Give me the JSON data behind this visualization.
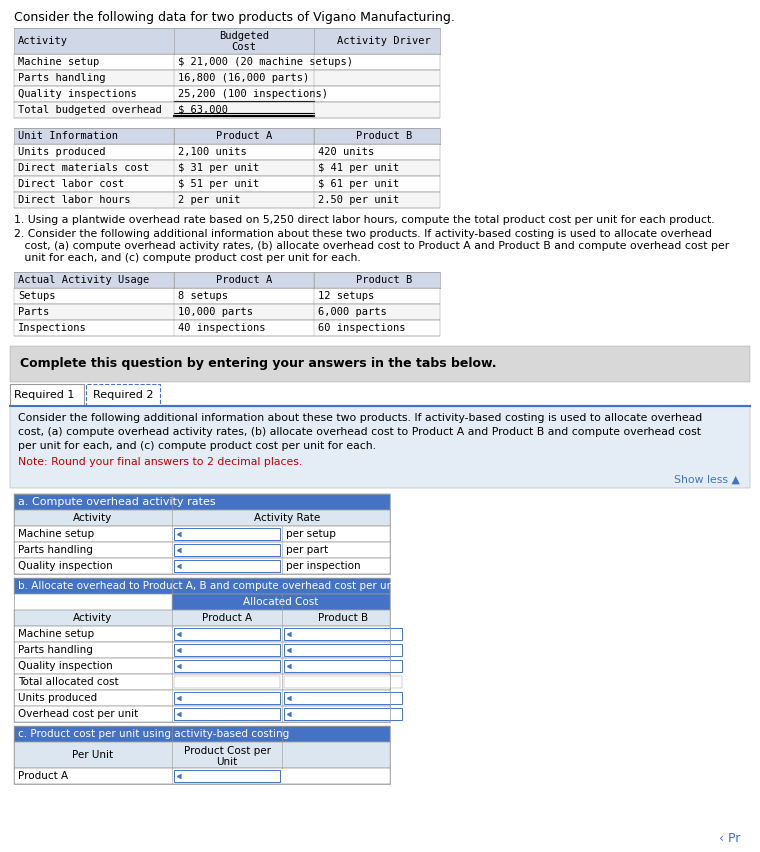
{
  "title": "Consider the following data for two products of Vigano Manufacturing.",
  "bg_color": "#ffffff",
  "header_bg": "#d0d8e8",
  "row_bg1": "#f5f5f5",
  "row_bg2": "#ffffff",
  "total_bg": "#e8e8e8",
  "blue_dark": "#4472c4",
  "blue_light": "#dce6f1",
  "blue_mid": "#b8cce4",
  "gray_box": "#d8d8d8",
  "note_red": "#c00000",
  "link_blue": "#4472c4",
  "content_bg": "#e4edf5",
  "white": "#ffffff",
  "black": "#000000",
  "border": "#999999",
  "t1_rows": [
    [
      "Machine setup",
      "$ 21,000 (20 machine setups)"
    ],
    [
      "Parts handling",
      "16,800 (16,000 parts)"
    ],
    [
      "Quality inspections",
      "25,200 (100 inspections)"
    ],
    [
      "Total budgeted overhead",
      "$ 63,000"
    ]
  ],
  "t2_rows": [
    [
      "Units produced",
      "2,100 units",
      "420 units"
    ],
    [
      "Direct materials cost",
      "$ 31 per unit",
      "$ 41 per unit"
    ],
    [
      "Direct labor cost",
      "$ 51 per unit",
      "$ 61 per unit"
    ],
    [
      "Direct labor hours",
      "2 per unit",
      "2.50 per unit"
    ]
  ],
  "t3_rows": [
    [
      "Setups",
      "8 setups",
      "12 setups"
    ],
    [
      "Parts",
      "10,000 parts",
      "6,000 parts"
    ],
    [
      "Inspections",
      "40 inspections",
      "60 inspections"
    ]
  ],
  "sa_rows": [
    [
      "Machine setup",
      "per setup"
    ],
    [
      "Parts handling",
      "per part"
    ],
    [
      "Quality inspection",
      "per inspection"
    ]
  ],
  "sb_rows": [
    [
      "Machine setup",
      true
    ],
    [
      "Parts handling",
      true
    ],
    [
      "Quality inspection",
      true
    ],
    [
      "Total allocated cost",
      false
    ],
    [
      "Units produced",
      true
    ],
    [
      "Overhead cost per unit",
      true
    ]
  ],
  "sc_rows": [
    [
      "Product A"
    ]
  ],
  "q1": "1. Using a plantwide overhead rate based on 5,250 direct labor hours, compute the total product cost per unit for each product.",
  "q2a": "2. Consider the following additional information about these two products. If activity-based costing is used to allocate overhead",
  "q2b": "   cost, (a) compute overhead activity rates, (b) allocate overhead cost to Product A and Product B and compute overhead cost per",
  "q2c": "   unit for each, and (c) compute product cost per unit for each.",
  "complete_text": "Complete this question by entering your answers in the tabs below.",
  "tab1": "Required 1",
  "tab2": "Required 2",
  "req2_l1": "Consider the following additional information about these two products. If activity-based costing is used to allocate overhead",
  "req2_l2": "cost, (a) compute overhead activity rates, (b) allocate overhead cost to Product A and Product B and compute overhead cost",
  "req2_l3": "per unit for each, and (c) compute product cost per unit for each.",
  "note": "Note: Round your final answers to 2 decimal places.",
  "show_less": "Show less ▲",
  "prev_next": "‹ Pr",
  "sa_title": "a. Compute overhead activity rates",
  "sb_title": "b. Allocate overhead to Product A, B and compute overhead cost per unit",
  "sb_sub": "Allocated Cost",
  "sc_title": "c. Product cost per unit using activity-based costing"
}
